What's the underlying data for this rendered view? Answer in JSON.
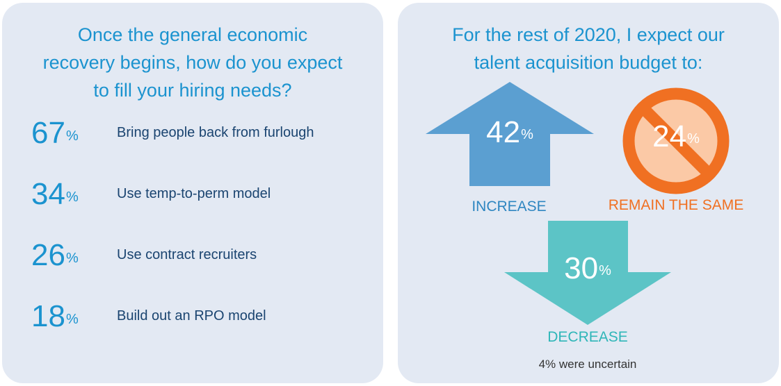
{
  "left_panel": {
    "heading": "Once the general economic\nrecovery begins, how do you expect\nto fill your hiring  needs?",
    "stats": [
      {
        "value": "67",
        "symbol": "%",
        "label": "Bring people back from furlough"
      },
      {
        "value": "34",
        "symbol": "%",
        "label": "Use temp-to-perm model"
      },
      {
        "value": "26",
        "symbol": "%",
        "label": "Use contract recruiters"
      },
      {
        "value": "18",
        "symbol": "%",
        "label": "Build out an RPO model"
      }
    ]
  },
  "right_panel": {
    "heading": "For the rest of 2020,  I expect our\ntalent acquisition budget  to:",
    "increase": {
      "value": "42",
      "symbol": "%",
      "label": "INCREASE",
      "color": "#5b9fd1"
    },
    "remain_same": {
      "value": "24",
      "symbol": "%",
      "label": "REMAIN THE  SAME",
      "color": "#f07022",
      "fill": "#fbc9a6"
    },
    "decrease": {
      "value": "30",
      "symbol": "%",
      "label": "DECREASE",
      "color": "#5cc4c6"
    },
    "note": "4% were uncertain"
  }
}
